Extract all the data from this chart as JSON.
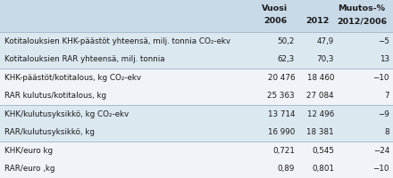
{
  "header_bg": "#c8d9e8",
  "row_bg_light": "#dce8f0",
  "row_bg_white": "#f0f4f8",
  "outer_bg": "#dce8f0",
  "figsize": [
    4.4,
    2.0
  ],
  "dpi": 100,
  "rows": [
    {
      "label": "Kotitalouksien KHK-päästöt yhteensä, milj. tonnia CO₂-ekv",
      "v2006": "50,2",
      "v2012": "47,9",
      "change": "−5",
      "bg": "#dce8f0"
    },
    {
      "label": "Kotitalouksien RAR yhteensä, milj. tonnia",
      "v2006": "62,3",
      "v2012": "70,3",
      "change": "13",
      "bg": "#dce8f0"
    },
    {
      "label": "KHK-päästöt/kotitalous, kg CO₂-ekv",
      "v2006": "20 476",
      "v2012": "18 460",
      "change": "−10",
      "bg": "#f0f4f8"
    },
    {
      "label": "RAR kulutus/kotitalous, kg",
      "v2006": "25 363",
      "v2012": "27 084",
      "change": "7",
      "bg": "#f0f4f8"
    },
    {
      "label": "KHK/kulutusyksikkö, kg CO₂-ekv",
      "v2006": "13 714",
      "v2012": "12 496",
      "change": "−9",
      "bg": "#dce8f0"
    },
    {
      "label": "RAR/kulutusyksikkö, kg",
      "v2006": "16 990",
      "v2012": "18 381",
      "change": "8",
      "bg": "#dce8f0"
    },
    {
      "label": "KHK/euro kg",
      "v2006": "0,721",
      "v2012": "0,545",
      "change": "−24",
      "bg": "#f0f4f8"
    },
    {
      "label": "RAR/euro ,kg",
      "v2006": "0,89",
      "v2012": "0,801",
      "change": "−10",
      "bg": "#f0f4f8"
    }
  ],
  "font_size_header": 6.8,
  "font_size_data": 6.3,
  "text_color": "#1a1a1a"
}
